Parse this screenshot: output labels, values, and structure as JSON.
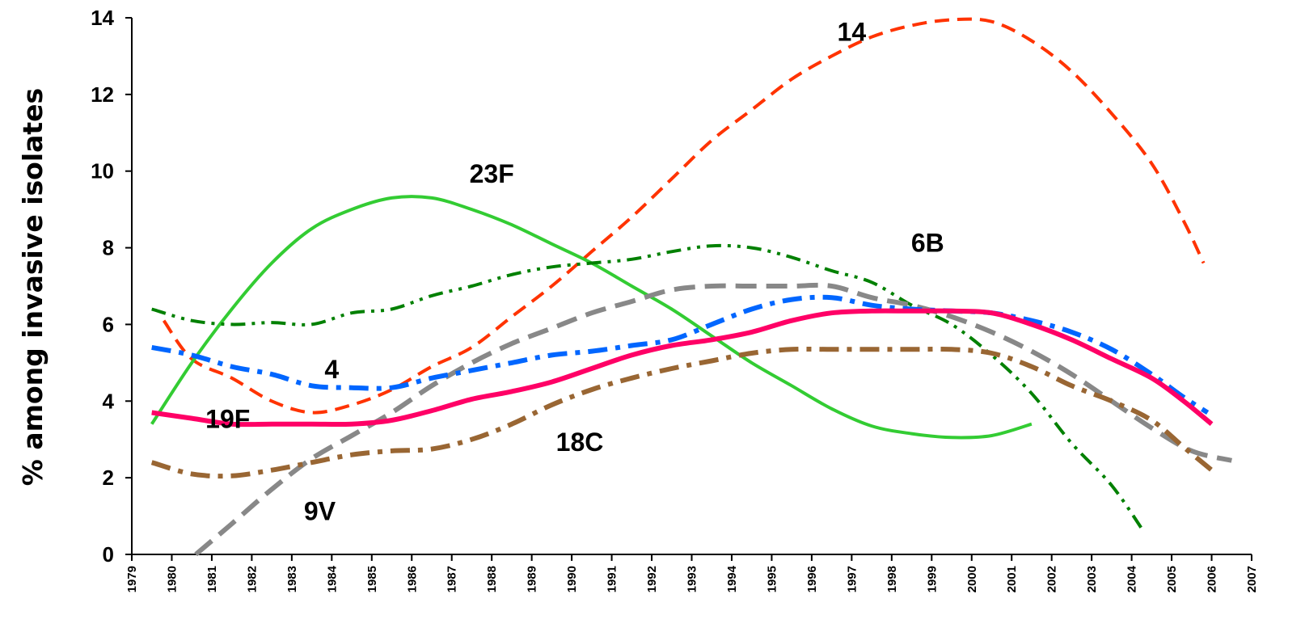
{
  "chart_data": {
    "type": "line",
    "title": "",
    "xlabel": "",
    "ylabel": "% among invasive isolates",
    "xlim": [
      1979,
      2007
    ],
    "ylim": [
      0,
      14
    ],
    "y_ticks": [
      0,
      2,
      4,
      6,
      8,
      10,
      12,
      14
    ],
    "x_ticks": [
      "1979",
      "1980",
      "1981",
      "1982",
      "1983",
      "1984",
      "1985",
      "1986",
      "1987",
      "1988",
      "1989",
      "1990",
      "1991",
      "1992",
      "1993",
      "1994",
      "1995",
      "1996",
      "1997",
      "1998",
      "1999",
      "2000",
      "2001",
      "2002",
      "2003",
      "2004",
      "2005",
      "2006",
      "2007"
    ],
    "grid": false,
    "series": [
      {
        "name": "14",
        "color": "#FF3300",
        "style": "dashed",
        "points": [
          [
            1979.8,
            6.1
          ],
          [
            1980.5,
            5.1
          ],
          [
            1981.5,
            4.6
          ],
          [
            1982.5,
            4.0
          ],
          [
            1983.5,
            3.7
          ],
          [
            1984.5,
            3.9
          ],
          [
            1985.5,
            4.3
          ],
          [
            1986.5,
            4.9
          ],
          [
            1987.5,
            5.4
          ],
          [
            1988.5,
            6.2
          ],
          [
            1989.5,
            7.0
          ],
          [
            1990.5,
            7.9
          ],
          [
            1991.5,
            8.8
          ],
          [
            1992.5,
            9.8
          ],
          [
            1993.5,
            10.8
          ],
          [
            1994.5,
            11.6
          ],
          [
            1995.5,
            12.4
          ],
          [
            1996.5,
            13.0
          ],
          [
            1997.5,
            13.5
          ],
          [
            1998.5,
            13.8
          ],
          [
            1999.5,
            13.95
          ],
          [
            2000.5,
            13.9
          ],
          [
            2001.5,
            13.4
          ],
          [
            2002.5,
            12.6
          ],
          [
            2003.5,
            11.5
          ],
          [
            2004.5,
            10.2
          ],
          [
            2005.3,
            8.7
          ],
          [
            2005.8,
            7.6
          ]
        ]
      },
      {
        "name": "23F",
        "color": "#33CC33",
        "style": "solid",
        "points": [
          [
            1979.5,
            3.4
          ],
          [
            1980.5,
            5.0
          ],
          [
            1981.5,
            6.4
          ],
          [
            1982.5,
            7.6
          ],
          [
            1983.5,
            8.5
          ],
          [
            1984.5,
            9.0
          ],
          [
            1985.5,
            9.3
          ],
          [
            1986.5,
            9.3
          ],
          [
            1987.5,
            9.0
          ],
          [
            1988.5,
            8.6
          ],
          [
            1989.5,
            8.1
          ],
          [
            1990.5,
            7.6
          ],
          [
            1991.5,
            7.0
          ],
          [
            1992.5,
            6.4
          ],
          [
            1993.5,
            5.7
          ],
          [
            1994.5,
            5.0
          ],
          [
            1995.5,
            4.4
          ],
          [
            1996.5,
            3.8
          ],
          [
            1997.5,
            3.35
          ],
          [
            1998.5,
            3.15
          ],
          [
            1999.5,
            3.05
          ],
          [
            2000.5,
            3.1
          ],
          [
            2001.5,
            3.4
          ]
        ]
      },
      {
        "name": "6B",
        "color": "#008000",
        "style": "dashdotdot",
        "points": [
          [
            1979.5,
            6.4
          ],
          [
            1980.5,
            6.1
          ],
          [
            1981.5,
            6.0
          ],
          [
            1982.5,
            6.05
          ],
          [
            1983.5,
            6.0
          ],
          [
            1984.5,
            6.3
          ],
          [
            1985.5,
            6.4
          ],
          [
            1986.5,
            6.75
          ],
          [
            1987.5,
            7.0
          ],
          [
            1988.5,
            7.3
          ],
          [
            1989.5,
            7.5
          ],
          [
            1990.5,
            7.6
          ],
          [
            1991.5,
            7.7
          ],
          [
            1992.5,
            7.9
          ],
          [
            1993.5,
            8.05
          ],
          [
            1994.5,
            8.0
          ],
          [
            1995.5,
            7.75
          ],
          [
            1996.5,
            7.4
          ],
          [
            1997.5,
            7.1
          ],
          [
            1998.5,
            6.5
          ],
          [
            1999.5,
            6.0
          ],
          [
            2000.5,
            5.2
          ],
          [
            2001.5,
            4.2
          ],
          [
            2002.5,
            2.9
          ],
          [
            2003.5,
            1.8
          ],
          [
            2004.3,
            0.6
          ]
        ]
      },
      {
        "name": "9V",
        "color": "#888888",
        "style": "longdash",
        "points": [
          [
            1980.6,
            0.0
          ],
          [
            1981.5,
            0.8
          ],
          [
            1982.5,
            1.7
          ],
          [
            1983.5,
            2.5
          ],
          [
            1984.5,
            3.1
          ],
          [
            1985.5,
            3.7
          ],
          [
            1986.5,
            4.4
          ],
          [
            1987.5,
            5.0
          ],
          [
            1988.5,
            5.5
          ],
          [
            1989.5,
            5.9
          ],
          [
            1990.5,
            6.3
          ],
          [
            1991.5,
            6.6
          ],
          [
            1992.5,
            6.9
          ],
          [
            1993.5,
            7.0
          ],
          [
            1994.5,
            7.0
          ],
          [
            1995.5,
            7.0
          ],
          [
            1996.5,
            7.0
          ],
          [
            1997.5,
            6.7
          ],
          [
            1998.5,
            6.5
          ],
          [
            1999.5,
            6.2
          ],
          [
            2000.5,
            5.8
          ],
          [
            2001.5,
            5.3
          ],
          [
            2002.5,
            4.7
          ],
          [
            2003.5,
            4.0
          ],
          [
            2004.5,
            3.3
          ],
          [
            2005.5,
            2.7
          ],
          [
            2006.5,
            2.45
          ]
        ]
      },
      {
        "name": "4",
        "color": "#0066FF",
        "style": "dashdot",
        "points": [
          [
            1979.5,
            5.4
          ],
          [
            1980.5,
            5.2
          ],
          [
            1981.5,
            4.9
          ],
          [
            1982.5,
            4.7
          ],
          [
            1983.5,
            4.4
          ],
          [
            1984.5,
            4.35
          ],
          [
            1985.5,
            4.35
          ],
          [
            1986.5,
            4.6
          ],
          [
            1987.5,
            4.8
          ],
          [
            1988.5,
            5.0
          ],
          [
            1989.5,
            5.2
          ],
          [
            1990.5,
            5.3
          ],
          [
            1991.5,
            5.45
          ],
          [
            1992.5,
            5.6
          ],
          [
            1993.5,
            6.0
          ],
          [
            1994.5,
            6.4
          ],
          [
            1995.5,
            6.65
          ],
          [
            1996.5,
            6.7
          ],
          [
            1997.5,
            6.5
          ],
          [
            1998.5,
            6.4
          ],
          [
            1999.5,
            6.35
          ],
          [
            2000.5,
            6.3
          ],
          [
            2001.5,
            6.1
          ],
          [
            2002.5,
            5.8
          ],
          [
            2003.5,
            5.35
          ],
          [
            2004.5,
            4.7
          ],
          [
            2005.3,
            4.1
          ],
          [
            2005.9,
            3.7
          ]
        ]
      },
      {
        "name": "19F",
        "color": "#FF0066",
        "style": "solid-thick",
        "points": [
          [
            1979.5,
            3.7
          ],
          [
            1980.5,
            3.55
          ],
          [
            1981.5,
            3.4
          ],
          [
            1982.5,
            3.4
          ],
          [
            1983.5,
            3.4
          ],
          [
            1984.5,
            3.4
          ],
          [
            1985.5,
            3.5
          ],
          [
            1986.5,
            3.75
          ],
          [
            1987.5,
            4.05
          ],
          [
            1988.5,
            4.25
          ],
          [
            1989.5,
            4.5
          ],
          [
            1990.5,
            4.85
          ],
          [
            1991.5,
            5.2
          ],
          [
            1992.5,
            5.45
          ],
          [
            1993.5,
            5.6
          ],
          [
            1994.5,
            5.8
          ],
          [
            1995.5,
            6.1
          ],
          [
            1996.5,
            6.3
          ],
          [
            1997.5,
            6.35
          ],
          [
            1998.5,
            6.35
          ],
          [
            1999.5,
            6.35
          ],
          [
            2000.5,
            6.3
          ],
          [
            2001.5,
            6.0
          ],
          [
            2002.5,
            5.6
          ],
          [
            2003.5,
            5.1
          ],
          [
            2004.5,
            4.6
          ],
          [
            2005.3,
            4.0
          ],
          [
            2006.0,
            3.4
          ]
        ]
      },
      {
        "name": "18C",
        "color": "#996633",
        "style": "dashdot",
        "points": [
          [
            1979.5,
            2.4
          ],
          [
            1980.5,
            2.1
          ],
          [
            1981.5,
            2.05
          ],
          [
            1982.5,
            2.2
          ],
          [
            1983.5,
            2.4
          ],
          [
            1984.5,
            2.6
          ],
          [
            1985.5,
            2.7
          ],
          [
            1986.5,
            2.75
          ],
          [
            1987.5,
            3.0
          ],
          [
            1988.5,
            3.4
          ],
          [
            1989.5,
            3.9
          ],
          [
            1990.5,
            4.3
          ],
          [
            1991.5,
            4.6
          ],
          [
            1992.5,
            4.85
          ],
          [
            1993.5,
            5.05
          ],
          [
            1994.5,
            5.25
          ],
          [
            1995.5,
            5.35
          ],
          [
            1996.5,
            5.35
          ],
          [
            1997.5,
            5.35
          ],
          [
            1998.5,
            5.35
          ],
          [
            1999.5,
            5.35
          ],
          [
            2000.5,
            5.25
          ],
          [
            2001.5,
            4.9
          ],
          [
            2002.5,
            4.4
          ],
          [
            2003.5,
            4.0
          ],
          [
            2004.5,
            3.5
          ],
          [
            2005.3,
            2.8
          ],
          [
            2006.0,
            2.2
          ]
        ]
      }
    ],
    "annotations": [
      {
        "text": "14",
        "x": 1997.0,
        "y": 13.4,
        "series": "14"
      },
      {
        "text": "23F",
        "x": 1988.0,
        "y": 9.7,
        "series": "23F"
      },
      {
        "text": "6B",
        "x": 1998.9,
        "y": 7.9,
        "series": "6B"
      },
      {
        "text": "4",
        "x": 1984.0,
        "y": 4.6,
        "series": "4"
      },
      {
        "text": "19F",
        "x": 1981.4,
        "y": 3.3,
        "series": "19F"
      },
      {
        "text": "18C",
        "x": 1990.2,
        "y": 2.7,
        "series": "18C"
      },
      {
        "text": "9V",
        "x": 1983.7,
        "y": 0.9,
        "series": "9V"
      }
    ]
  }
}
